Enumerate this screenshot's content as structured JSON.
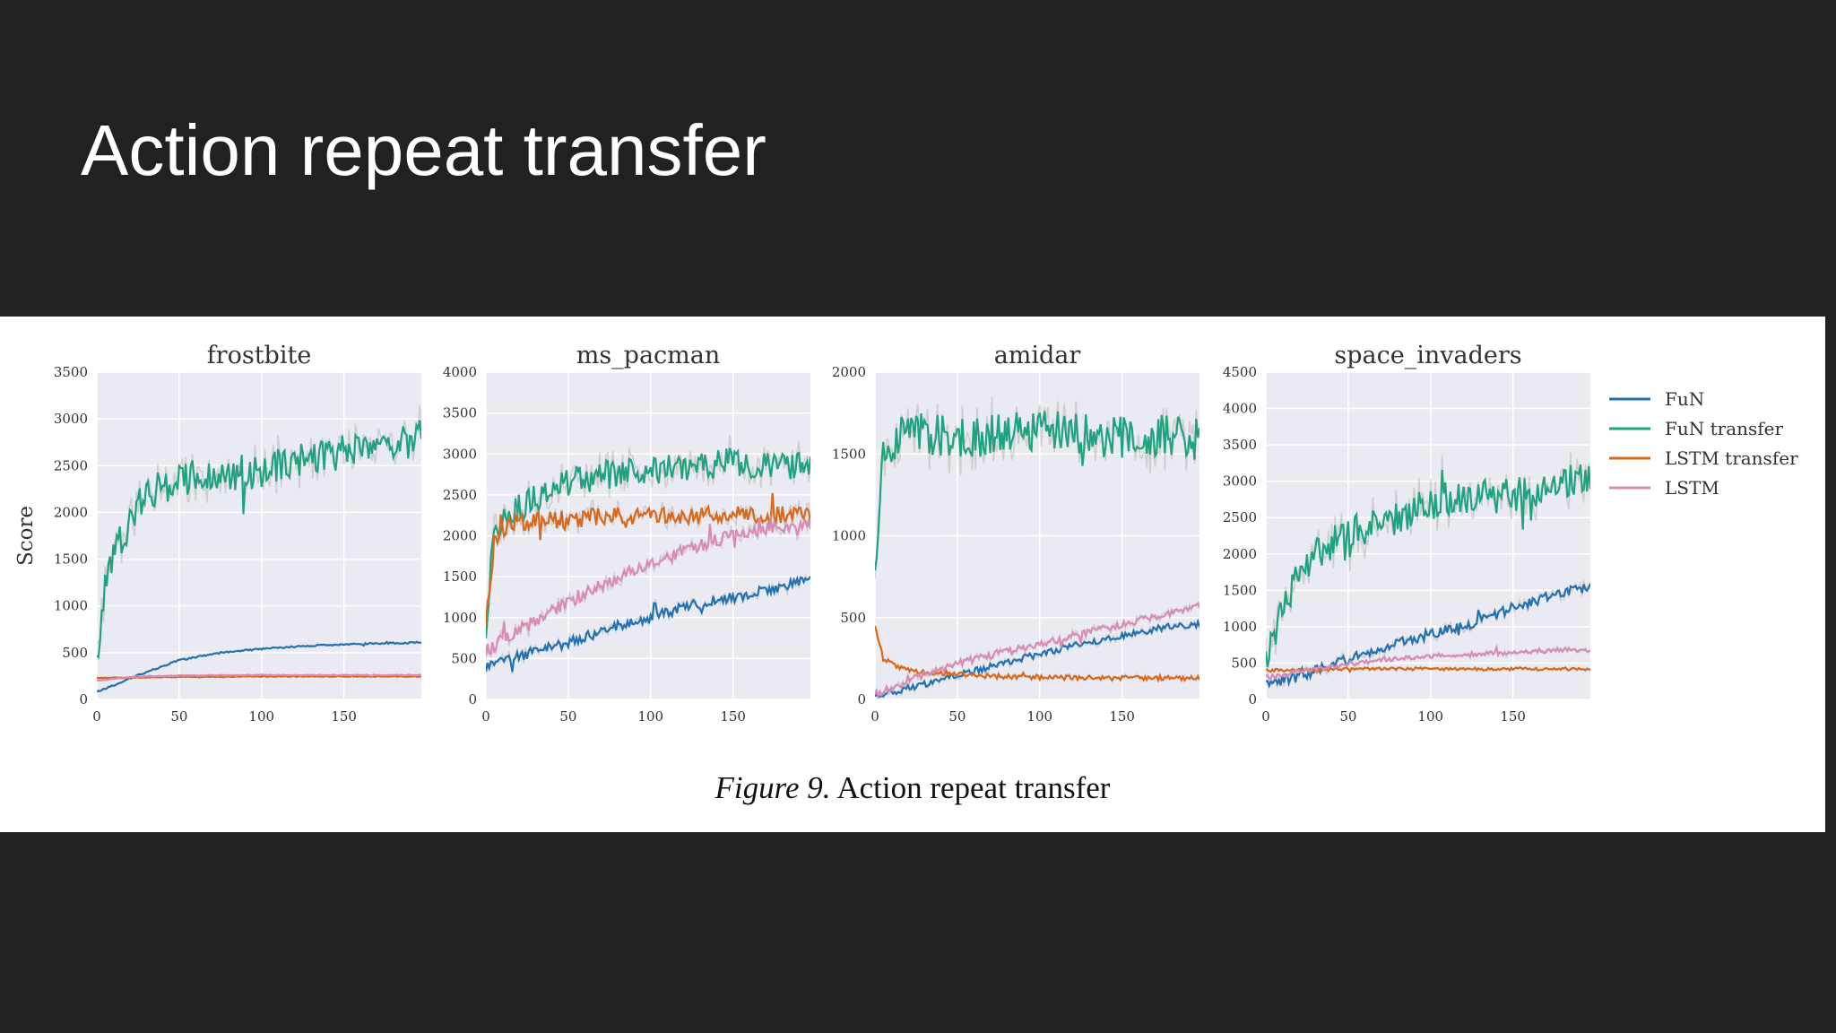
{
  "slide": {
    "title": "Action repeat transfer"
  },
  "caption": {
    "label": "Figure 9.",
    "text": "Action repeat transfer"
  },
  "colors": {
    "FuN": "#2271b1",
    "FuN transfer": "#1fa37f",
    "LSTM transfer": "#d9681a",
    "LSTM": "#d98bb4",
    "noise_band": "#b7b7b7",
    "plot_bg": "#eaeaf2",
    "grid": "#ffffff"
  },
  "chart_data": [
    {
      "type": "line",
      "title": "frostbite",
      "ylabel": "Score",
      "xlim": [
        0,
        197
      ],
      "ylim": [
        0,
        3500
      ],
      "xticks": [
        0,
        50,
        100,
        150
      ],
      "yticks": [
        0,
        500,
        1000,
        1500,
        2000,
        2500,
        3000,
        3500
      ],
      "series": [
        {
          "name": "FuN",
          "x": [
            0,
            10,
            25,
            50,
            75,
            100,
            125,
            150,
            175,
            197
          ],
          "y": [
            80,
            150,
            260,
            420,
            500,
            540,
            570,
            590,
            600,
            610
          ],
          "noise": 8
        },
        {
          "name": "FuN transfer",
          "x": [
            0,
            5,
            15,
            30,
            50,
            75,
            100,
            125,
            150,
            175,
            197
          ],
          "y": [
            400,
            1300,
            1700,
            2200,
            2350,
            2400,
            2450,
            2550,
            2650,
            2700,
            2800
          ],
          "noise": 190
        },
        {
          "name": "LSTM transfer",
          "x": [
            0,
            50,
            100,
            150,
            197
          ],
          "y": [
            230,
            240,
            245,
            245,
            245
          ],
          "noise": 4
        },
        {
          "name": "LSTM",
          "x": [
            0,
            10,
            25,
            50,
            100,
            150,
            197
          ],
          "y": [
            200,
            220,
            245,
            255,
            260,
            260,
            260
          ],
          "noise": 4
        }
      ]
    },
    {
      "type": "line",
      "title": "ms_pacman",
      "ylabel": "",
      "xlim": [
        0,
        197
      ],
      "ylim": [
        0,
        4000
      ],
      "xticks": [
        0,
        50,
        100,
        150
      ],
      "yticks": [
        0,
        500,
        1000,
        1500,
        2000,
        2500,
        3000,
        3500,
        4000
      ],
      "series": [
        {
          "name": "FuN",
          "x": [
            0,
            25,
            50,
            75,
            100,
            125,
            150,
            175,
            197
          ],
          "y": [
            400,
            550,
            700,
            850,
            1000,
            1150,
            1250,
            1350,
            1450
          ],
          "noise": 65
        },
        {
          "name": "FuN transfer",
          "x": [
            0,
            5,
            15,
            30,
            50,
            75,
            100,
            125,
            150,
            175,
            197
          ],
          "y": [
            900,
            2000,
            2300,
            2450,
            2650,
            2750,
            2800,
            2850,
            2900,
            2850,
            2900
          ],
          "noise": 180
        },
        {
          "name": "LSTM transfer",
          "x": [
            0,
            5,
            15,
            30,
            50,
            75,
            100,
            125,
            150,
            175,
            197
          ],
          "y": [
            1000,
            1900,
            2150,
            2200,
            2200,
            2250,
            2250,
            2250,
            2250,
            2250,
            2250
          ],
          "noise": 110
        },
        {
          "name": "LSTM",
          "x": [
            0,
            25,
            50,
            75,
            100,
            125,
            150,
            175,
            197
          ],
          "y": [
            600,
            900,
            1200,
            1450,
            1650,
            1850,
            2000,
            2100,
            2150
          ],
          "noise": 80
        }
      ]
    },
    {
      "type": "line",
      "title": "amidar",
      "ylabel": "",
      "xlim": [
        0,
        197
      ],
      "ylim": [
        0,
        2000
      ],
      "xticks": [
        0,
        50,
        100,
        150
      ],
      "yticks": [
        0,
        500,
        1000,
        1500,
        2000
      ],
      "series": [
        {
          "name": "FuN",
          "x": [
            0,
            25,
            50,
            75,
            100,
            125,
            150,
            175,
            197
          ],
          "y": [
            20,
            80,
            150,
            210,
            280,
            340,
            390,
            440,
            460
          ],
          "noise": 20
        },
        {
          "name": "FuN transfer",
          "x": [
            0,
            5,
            15,
            30,
            50,
            75,
            100,
            125,
            150,
            175,
            197
          ],
          "y": [
            800,
            1500,
            1600,
            1620,
            1600,
            1620,
            1650,
            1620,
            1600,
            1620,
            1600
          ],
          "noise": 130
        },
        {
          "name": "LSTM transfer",
          "x": [
            0,
            5,
            15,
            25,
            40,
            60,
            100,
            150,
            197
          ],
          "y": [
            450,
            250,
            190,
            170,
            160,
            145,
            135,
            130,
            130
          ],
          "noise": 14
        },
        {
          "name": "LSTM",
          "x": [
            0,
            25,
            50,
            75,
            100,
            125,
            150,
            175,
            197
          ],
          "y": [
            30,
            130,
            220,
            280,
            340,
            400,
            460,
            520,
            570
          ],
          "noise": 22
        }
      ]
    },
    {
      "type": "line",
      "title": "space_invaders",
      "ylabel": "",
      "xlim": [
        0,
        197
      ],
      "ylim": [
        0,
        4500
      ],
      "xticks": [
        0,
        50,
        100,
        150
      ],
      "yticks": [
        0,
        500,
        1000,
        1500,
        2000,
        2500,
        3000,
        3500,
        4000,
        4500
      ],
      "series": [
        {
          "name": "FuN",
          "x": [
            0,
            25,
            50,
            75,
            100,
            125,
            150,
            175,
            197
          ],
          "y": [
            200,
            350,
            550,
            750,
            900,
            1050,
            1250,
            1450,
            1550
          ],
          "noise": 70
        },
        {
          "name": "FuN transfer",
          "x": [
            0,
            10,
            25,
            50,
            75,
            100,
            125,
            150,
            175,
            197
          ],
          "y": [
            500,
            1300,
            1900,
            2300,
            2450,
            2700,
            2800,
            2800,
            2950,
            3050
          ],
          "noise": 230
        },
        {
          "name": "LSTM transfer",
          "x": [
            0,
            25,
            50,
            100,
            150,
            197
          ],
          "y": [
            400,
            400,
            420,
            420,
            420,
            420
          ],
          "noise": 20
        },
        {
          "name": "LSTM",
          "x": [
            0,
            25,
            50,
            75,
            100,
            125,
            150,
            175,
            197
          ],
          "y": [
            300,
            400,
            480,
            550,
            600,
            620,
            650,
            680,
            680
          ],
          "noise": 30
        }
      ]
    }
  ],
  "legend": {
    "placement": "right",
    "entries": [
      "FuN",
      "FuN transfer",
      "LSTM transfer",
      "LSTM"
    ]
  }
}
